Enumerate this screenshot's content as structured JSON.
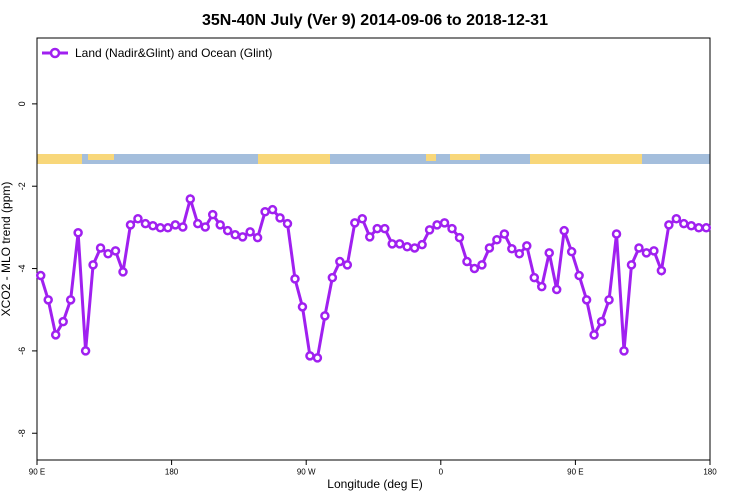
{
  "chart_data": {
    "type": "line",
    "title": "35N-40N July (Ver 9)   2014-09-06 to 2018-12-31",
    "x_label": "Longitude (deg E)",
    "y_label": "XCO2 - MLO trend (ppm)",
    "x": [
      92.5,
      97.5,
      102.5,
      107.5,
      112.5,
      117.5,
      122.5,
      127.5,
      132.5,
      137.5,
      142.5,
      147.5,
      152.5,
      157.5,
      162.5,
      167.5,
      172.5,
      177.5,
      182.5,
      187.5,
      192.5,
      197.5,
      202.5,
      207.5,
      212.5,
      217.5,
      222.5,
      227.5,
      232.5,
      237.5,
      242.5,
      247.5,
      252.5,
      257.5,
      262.5,
      267.5,
      272.5,
      277.5,
      282.5,
      287.5,
      292.5,
      297.5,
      302.5,
      307.5,
      312.5,
      317.5,
      322.5,
      327.5,
      332.5,
      337.5,
      342.5,
      347.5,
      352.5,
      357.5,
      362.5,
      367.5,
      372.5,
      377.5,
      382.5,
      387.5,
      392.5,
      397.5,
      402.5,
      407.5,
      412.5,
      417.5,
      422.5,
      427.5,
      432.5,
      437.5,
      442.5,
      447.5,
      452.5,
      457.5,
      462.5,
      467.5,
      472.5,
      477.5,
      482.5,
      487.5,
      492.5,
      497.5,
      502.5,
      507.5,
      512.5,
      517.5,
      522.5,
      527.5,
      532.5,
      537.5
    ],
    "series": [
      {
        "name": "Land (Nadir&Glint) and Ocean (Glint)",
        "color": "#a020f0",
        "values": [
          -4.17,
          -4.76,
          -5.61,
          -5.29,
          -4.76,
          -3.13,
          -6.0,
          -3.91,
          -3.5,
          -3.64,
          -3.57,
          -4.08,
          -2.94,
          -2.79,
          -2.91,
          -2.96,
          -3.01,
          -3.01,
          -2.94,
          -2.99,
          -2.31,
          -2.91,
          -2.99,
          -2.69,
          -2.94,
          -3.08,
          -3.18,
          -3.23,
          -3.11,
          -3.25,
          -2.62,
          -2.57,
          -2.77,
          -2.91,
          -4.25,
          -4.93,
          -6.12,
          -6.17,
          -5.15,
          -4.22,
          -3.83,
          -3.91,
          -2.89,
          -2.79,
          -3.23,
          -3.03,
          -3.03,
          -3.4,
          -3.4,
          -3.47,
          -3.5,
          -3.42,
          -3.06,
          -2.94,
          -2.89,
          -3.03,
          -3.25,
          -3.83,
          -4.0,
          -3.91,
          -3.5,
          -3.3,
          -3.16,
          -3.52,
          -3.64,
          -3.45,
          -4.22,
          -4.44,
          -3.62,
          -4.51,
          -3.08,
          -3.59,
          -4.17,
          -4.76,
          -5.61,
          -5.29,
          -4.76,
          -3.16,
          -6.0,
          -3.91,
          -3.5,
          -3.62,
          -3.57,
          -4.05,
          -2.94,
          -2.79,
          -2.91,
          -2.96,
          -3.01,
          -3.01
        ]
      }
    ],
    "xlim": [
      90,
      540
    ],
    "xticks": [
      {
        "value": 90,
        "label": "90 E"
      },
      180,
      {
        "value": 270,
        "label": "90 W"
      },
      {
        "value": 360,
        "label": "0"
      },
      {
        "value": 450,
        "label": "90 E"
      },
      {
        "value": 540,
        "label": "180"
      }
    ],
    "ylim": [
      -8.65,
      1.6
    ],
    "yticks": [
      0,
      -2,
      -4,
      -6,
      -8
    ],
    "legend": "top-left"
  }
}
